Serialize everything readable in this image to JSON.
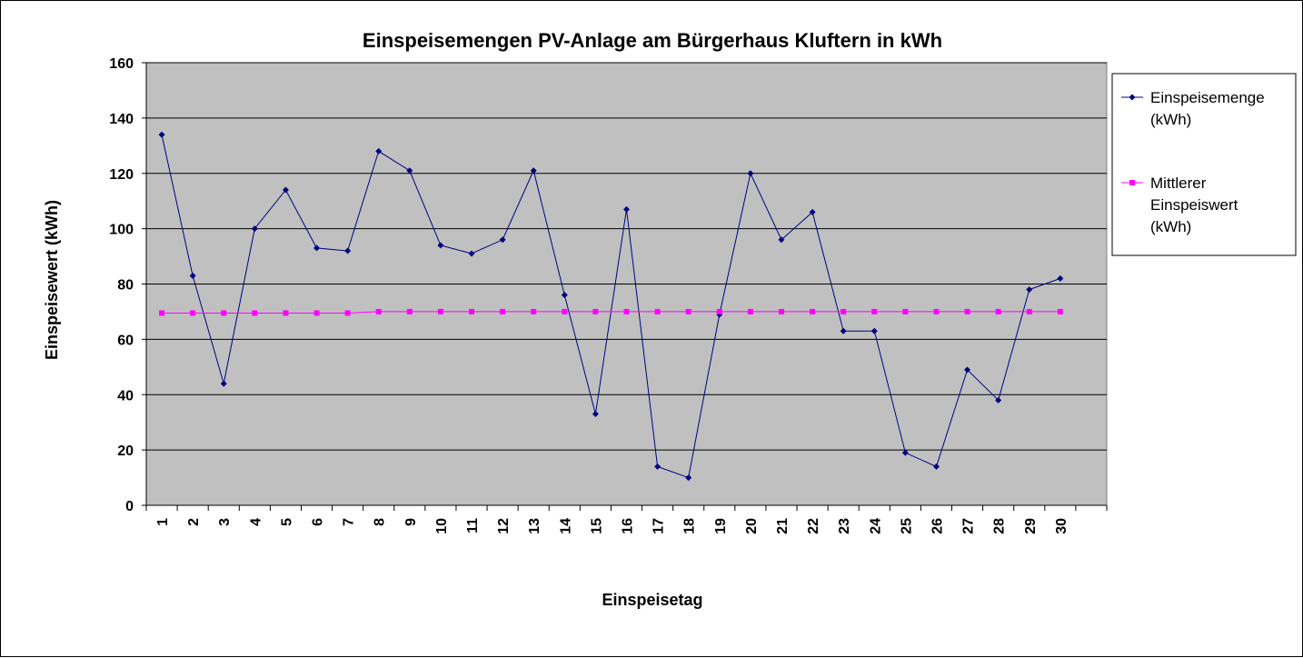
{
  "chart_data": {
    "type": "line",
    "title": "Einspeisemengen PV-Anlage am Bürgerhaus Kluftern in kWh",
    "xlabel": "Einspeisetag",
    "ylabel": "Einspeisewert (kWh)",
    "ylim": [
      0,
      160
    ],
    "yticks": [
      "0",
      "20",
      "40",
      "60",
      "80",
      "100",
      "120",
      "140",
      "160"
    ],
    "categories": [
      "1",
      "2",
      "3",
      "4",
      "5",
      "6",
      "7",
      "8",
      "9",
      "10",
      "11",
      "12",
      "13",
      "14",
      "15",
      "16",
      "17",
      "18",
      "19",
      "20",
      "21",
      "22",
      "23",
      "24",
      "25",
      "26",
      "27",
      "28",
      "29",
      "30"
    ],
    "grid": true,
    "legend_position": "right",
    "plot_background": "#c0c0c0",
    "series": [
      {
        "name": "Einspeisemenge (kWh)",
        "legend_lines": [
          "Einspeisemenge",
          "(kWh)"
        ],
        "color": "#000080",
        "marker": "diamond",
        "values": [
          134,
          83,
          44,
          100,
          114,
          93,
          92,
          128,
          121,
          94,
          91,
          96,
          121,
          76,
          33,
          107,
          14,
          10,
          69,
          120,
          96,
          106,
          63,
          63,
          19,
          14,
          49,
          38,
          78,
          82
        ]
      },
      {
        "name": "Mittlerer Einspeiswert (kWh)",
        "legend_lines": [
          "Mittlerer",
          "Einspeiswert",
          "(kWh)"
        ],
        "color": "#ff00ff",
        "marker": "square",
        "values": [
          69.5,
          69.5,
          69.5,
          69.5,
          69.5,
          69.5,
          69.5,
          70,
          70,
          70,
          70,
          70,
          70,
          70,
          70,
          70,
          70,
          70,
          70,
          70,
          70,
          70,
          70,
          70,
          70,
          70,
          70,
          70,
          70,
          70
        ]
      }
    ]
  }
}
